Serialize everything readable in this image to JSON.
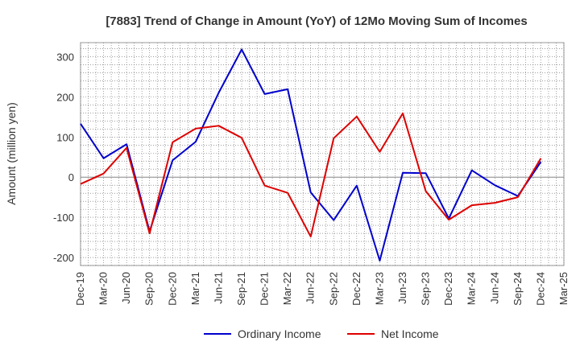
{
  "chart_data": {
    "type": "line",
    "title": "[7883]  Trend of Change in Amount (YoY) of 12Mo Moving Sum of Incomes",
    "ylabel": "Amount (million yen)",
    "xlabel": "",
    "categories": [
      "Dec-19",
      "Mar-20",
      "Jun-20",
      "Sep-20",
      "Dec-20",
      "Mar-21",
      "Jun-21",
      "Sep-21",
      "Dec-21",
      "Mar-22",
      "Jun-22",
      "Sep-22",
      "Dec-22",
      "Mar-23",
      "Jun-23",
      "Sep-23",
      "Dec-23",
      "Mar-24",
      "Jun-24",
      "Sep-24",
      "Dec-24",
      "Mar-25"
    ],
    "yticks": [
      300,
      200,
      100,
      0,
      -100,
      -200
    ],
    "ylim": [
      -220,
      335
    ],
    "grid": true,
    "legend_position": "bottom",
    "series": [
      {
        "name": "Ordinary Income",
        "color": "#0000cc",
        "values": [
          133,
          47,
          82,
          -135,
          42,
          88,
          210,
          318,
          207,
          219,
          -38,
          -107,
          -21,
          -208,
          11,
          10,
          -103,
          17,
          -20,
          -47,
          38,
          null
        ]
      },
      {
        "name": "Net Income",
        "color": "#dd0000",
        "values": [
          -17,
          9,
          73,
          -140,
          87,
          121,
          128,
          98,
          -21,
          -39,
          -148,
          97,
          151,
          63,
          159,
          -35,
          -106,
          -70,
          -64,
          -50,
          47,
          null
        ]
      }
    ]
  }
}
